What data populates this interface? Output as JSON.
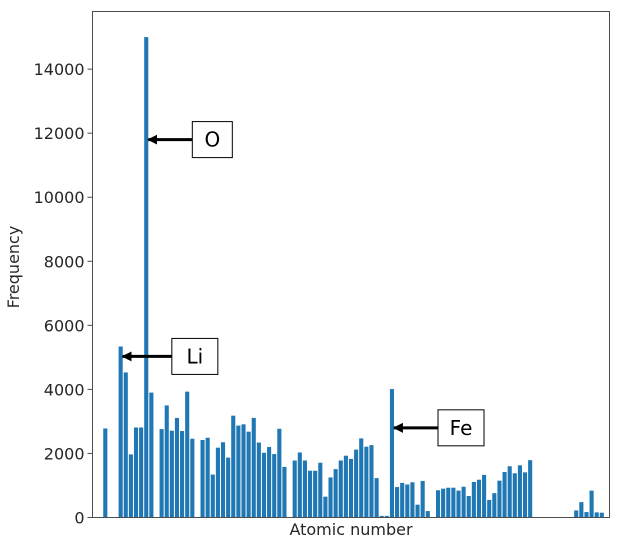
{
  "chart_data": {
    "type": "bar",
    "title": "",
    "xlabel": "Atomic number",
    "ylabel": "Frequency",
    "ylim": [
      0,
      15800
    ],
    "yticks": [
      0,
      2000,
      4000,
      6000,
      8000,
      10000,
      12000,
      14000
    ],
    "ytick_labels": [
      "0",
      "2000",
      "4000",
      "6000",
      "8000",
      "10000",
      "12000",
      "14000"
    ],
    "x_range": [
      -2.5,
      98.5
    ],
    "grid": false,
    "bar_color": "#1f77b4",
    "values": [
      2780,
      0,
      0,
      5340,
      4530,
      1970,
      2810,
      2810,
      15000,
      3900,
      0,
      2760,
      3500,
      2710,
      3110,
      2700,
      3930,
      2460,
      0,
      2420,
      2490,
      1340,
      2180,
      2350,
      1870,
      3180,
      2870,
      2910,
      2680,
      3110,
      2340,
      2020,
      2200,
      1980,
      2770,
      1580,
      0,
      1780,
      2030,
      1780,
      1460,
      1460,
      1710,
      650,
      1250,
      1510,
      1780,
      1930,
      1830,
      2120,
      2470,
      2210,
      2260,
      1230,
      50,
      50,
      4010,
      950,
      1080,
      1030,
      1100,
      400,
      1140,
      200,
      0,
      850,
      900,
      930,
      930,
      840,
      960,
      670,
      1110,
      1180,
      1330,
      550,
      760,
      1150,
      1420,
      1600,
      1380,
      1630,
      1410,
      1790,
      0,
      0,
      0,
      0,
      0,
      0,
      0,
      0,
      220,
      480,
      170,
      840,
      160,
      150
    ]
  },
  "annotations": [
    {
      "label": "O",
      "x": 8,
      "y": 11800,
      "text_x": 17,
      "text_y": 11800
    },
    {
      "label": "Li",
      "x": 3,
      "y": 5030,
      "text_x": 13,
      "text_y": 5030
    },
    {
      "label": "Fe",
      "x": 56,
      "y": 2800,
      "text_x": 65,
      "text_y": 2800
    }
  ]
}
